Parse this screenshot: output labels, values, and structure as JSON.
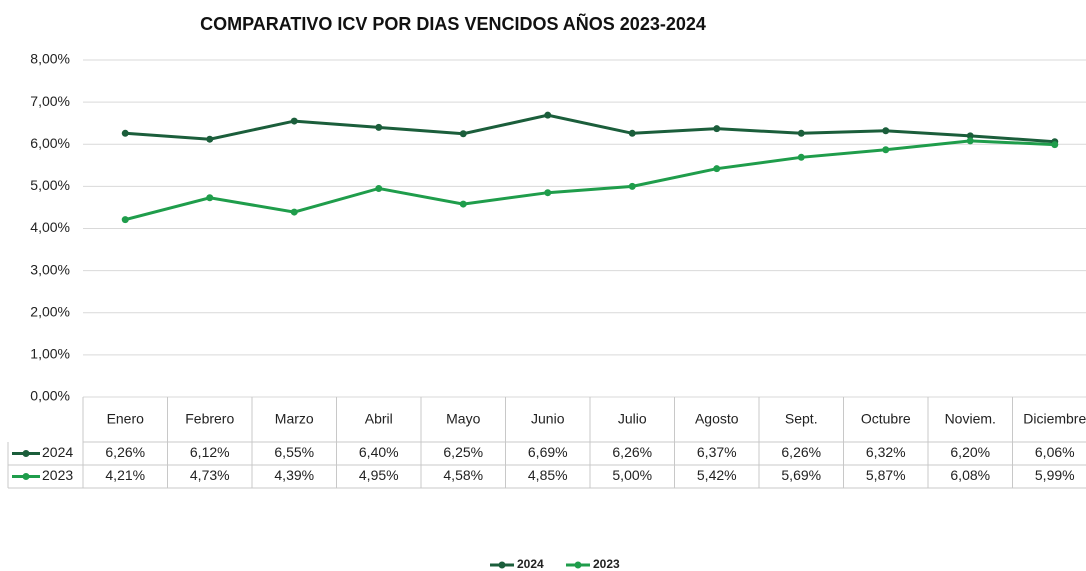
{
  "chart_data": {
    "type": "line",
    "title": "COMPARATIVO ICV POR DIAS VENCIDOS AÑOS 2023-2024",
    "categories": [
      "Enero",
      "Febrero",
      "Marzo",
      "Abril",
      "Mayo",
      "Junio",
      "Julio",
      "Agosto",
      "Sept.",
      "Octubre",
      "Noviem.",
      "Diciembre"
    ],
    "series": [
      {
        "name": "2024",
        "color": "#1b5e3b",
        "values": [
          6.26,
          6.12,
          6.55,
          6.4,
          6.25,
          6.69,
          6.26,
          6.37,
          6.26,
          6.32,
          6.2,
          6.06
        ],
        "value_labels": [
          "6,26%",
          "6,12%",
          "6,55%",
          "6,40%",
          "6,25%",
          "6,69%",
          "6,26%",
          "6,37%",
          "6,26%",
          "6,32%",
          "6,20%",
          "6,06%"
        ]
      },
      {
        "name": "2023",
        "color": "#1f9d4b",
        "values": [
          4.21,
          4.73,
          4.39,
          4.95,
          4.58,
          4.85,
          5.0,
          5.42,
          5.69,
          5.87,
          6.08,
          5.99
        ],
        "value_labels": [
          "4,21%",
          "4,73%",
          "4,39%",
          "4,95%",
          "4,58%",
          "4,85%",
          "5,00%",
          "5,42%",
          "5,69%",
          "5,87%",
          "6,08%",
          "5,99%"
        ]
      }
    ],
    "ylim": [
      0,
      8
    ],
    "yticks": [
      {
        "value": 0,
        "label": "0,00%"
      },
      {
        "value": 1,
        "label": "1,00%"
      },
      {
        "value": 2,
        "label": "2,00%"
      },
      {
        "value": 3,
        "label": "3,00%"
      },
      {
        "value": 4,
        "label": "4,00%"
      },
      {
        "value": 5,
        "label": "5,00%"
      },
      {
        "value": 6,
        "label": "6,00%"
      },
      {
        "value": 7,
        "label": "7,00%"
      },
      {
        "value": 8,
        "label": "8,00%"
      }
    ],
    "grid": true,
    "legend": "bottom"
  }
}
